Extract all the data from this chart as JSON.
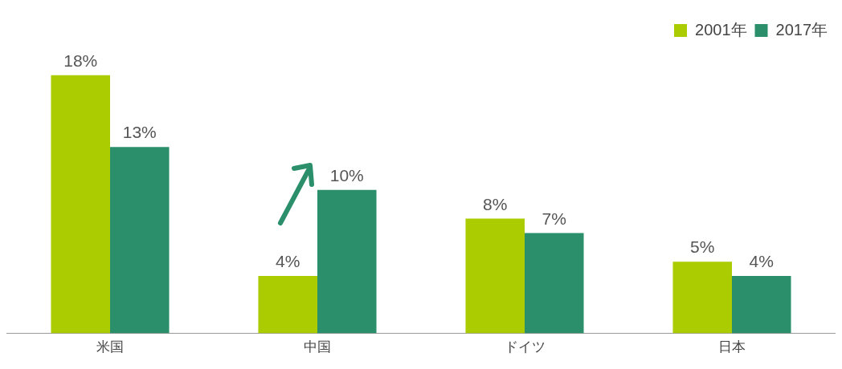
{
  "chart_data": {
    "type": "bar",
    "categories": [
      "米国",
      "中国",
      "ドイツ",
      "日本"
    ],
    "series": [
      {
        "name": "2001年",
        "color": "#aacc00",
        "values": [
          18,
          4,
          8,
          5
        ],
        "value_labels": [
          "18%",
          "4%",
          "8%",
          "5%"
        ]
      },
      {
        "name": "2017年",
        "color": "#2a8f6a",
        "values": [
          13,
          10,
          7,
          4
        ],
        "value_labels": [
          "13%",
          "10%",
          "7%",
          "4%"
        ]
      }
    ],
    "legend": "top right"
  }
}
